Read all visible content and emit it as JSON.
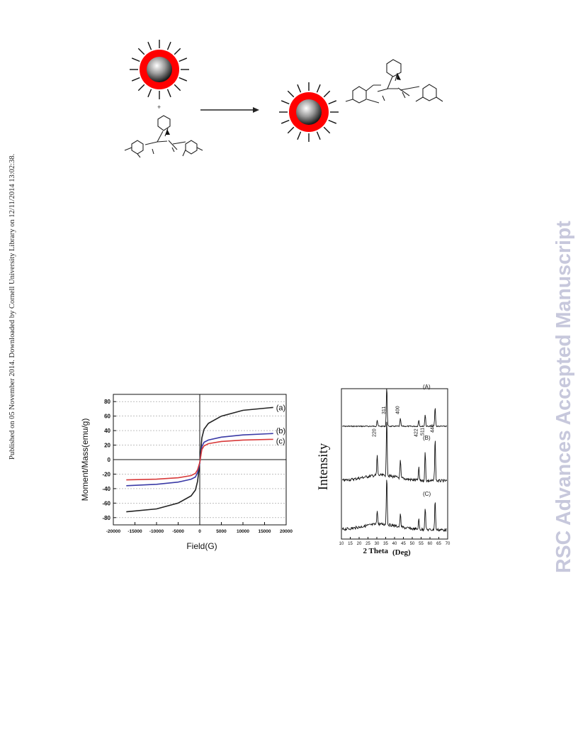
{
  "left_margin_text": "Published on 05 November 2014. Downloaded by Cornell University Library on 12/11/2014 13:02:38.",
  "watermark": "RSC Advances Accepted Manuscript",
  "scheme": {
    "plus": "+"
  },
  "colors": {
    "shell": "#ff0000",
    "watermark": "#c7c8dc",
    "curve_a": "#222222",
    "curve_b": "#3a3aa6",
    "curve_c": "#d83a3a"
  },
  "chart_data": [
    {
      "type": "line",
      "title": "",
      "xlabel": "Field(G)",
      "ylabel": "Moment/Mass(emu/g)",
      "xlim": [
        -20000,
        20000
      ],
      "ylim": [
        -90,
        90
      ],
      "x_ticks": [
        "-20000",
        "-15000",
        "-10000",
        "-5000",
        "0",
        "5000",
        "10000",
        "15000",
        "20000"
      ],
      "y_ticks": [
        "80",
        "60",
        "40",
        "20",
        "0",
        "-20",
        "-40",
        "-60",
        "-80"
      ],
      "grid": true,
      "series": [
        {
          "name": "(a)",
          "x": [
            -17000,
            -10000,
            -5000,
            -2000,
            -1000,
            -500,
            0,
            500,
            1000,
            2000,
            5000,
            10000,
            17000
          ],
          "y": [
            -72,
            -68,
            -60,
            -50,
            -42,
            -30,
            -5,
            30,
            42,
            50,
            60,
            68,
            72
          ]
        },
        {
          "name": "(b)",
          "x": [
            -17000,
            -10000,
            -5000,
            -2000,
            -1000,
            -500,
            0,
            500,
            1000,
            2000,
            5000,
            10000,
            17000
          ],
          "y": [
            -36,
            -34,
            -31,
            -27,
            -24,
            -18,
            -5,
            18,
            24,
            27,
            31,
            34,
            36
          ]
        },
        {
          "name": "(c)",
          "x": [
            -17000,
            -10000,
            -5000,
            -2000,
            -1000,
            -500,
            0,
            500,
            1000,
            2000,
            5000,
            10000,
            17000
          ],
          "y": [
            -28,
            -27,
            -25,
            -22,
            -19,
            -14,
            -4,
            14,
            19,
            22,
            25,
            27,
            28
          ]
        }
      ]
    },
    {
      "type": "line",
      "title": "",
      "xlabel": "2 Theta",
      "xlabel_unit": "(Deg)",
      "ylabel": "Intensity",
      "xlim": [
        10,
        70
      ],
      "x_ticks": [
        "10",
        "15",
        "20",
        "25",
        "30",
        "35",
        "40",
        "45",
        "50",
        "55",
        "60",
        "65",
        "70"
      ],
      "peak_labels": [
        "220",
        "311",
        "400",
        "422",
        "511",
        "440"
      ],
      "peak_positions": [
        30.2,
        35.6,
        43.3,
        53.7,
        57.3,
        62.9
      ],
      "series": [
        {
          "name": "(A)",
          "peak_heights": [
            0.15,
            0.95,
            0.18,
            0.15,
            0.28,
            0.45
          ]
        },
        {
          "name": "(B)",
          "peak_heights": [
            0.35,
            1.0,
            0.3,
            0.22,
            0.5,
            0.75
          ]
        },
        {
          "name": "(C)",
          "peak_heights": [
            0.3,
            1.0,
            0.25,
            0.2,
            0.45,
            0.6
          ]
        }
      ]
    }
  ]
}
